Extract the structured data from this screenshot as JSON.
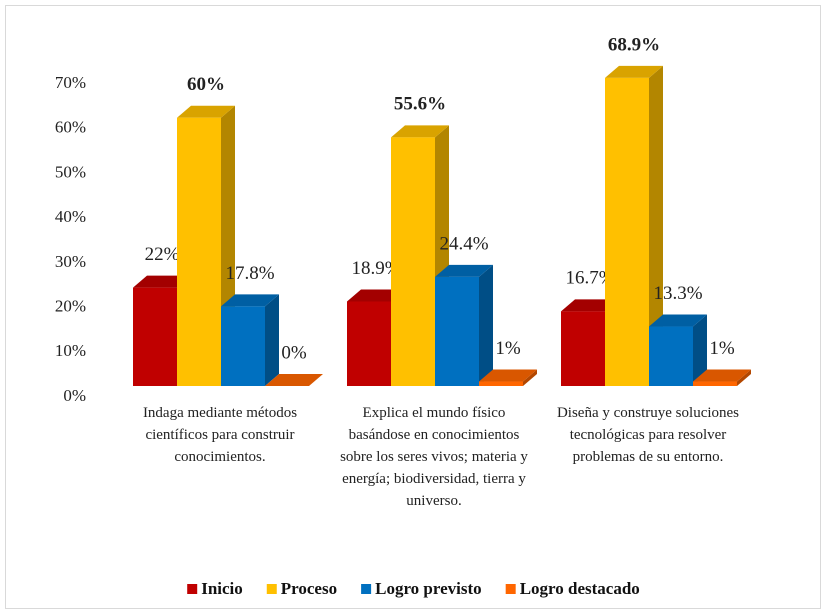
{
  "chart_data": {
    "type": "bar3d",
    "categories": [
      "Indaga mediante métodos científicos para construir conocimientos.",
      "Explica el mundo físico basándose en conocimientos sobre los seres vivos; materia y energía; biodiversidad, tierra y universo.",
      "Diseña y construye soluciones tecnológicas para resolver problemas de su entorno."
    ],
    "series": [
      {
        "name": "Inicio",
        "color": "#c00000",
        "values": [
          22,
          18.9,
          16.7
        ],
        "value_labels": [
          "22%",
          "18.9%",
          "16.7%"
        ],
        "label_bold": false
      },
      {
        "name": "Proceso",
        "color": "#ffc000",
        "values": [
          60,
          55.6,
          68.9
        ],
        "value_labels": [
          "60%",
          "55.6%",
          "68.9%"
        ],
        "label_bold": true
      },
      {
        "name": "Logro previsto",
        "color": "#0070c0",
        "values": [
          17.8,
          24.4,
          13.3
        ],
        "value_labels": [
          "17.8%",
          "24.4%",
          "13.3%"
        ],
        "label_bold": false
      },
      {
        "name": "Logro destacado",
        "color": "#ff6600",
        "values": [
          0,
          1,
          1
        ],
        "value_labels": [
          "0%",
          "1%",
          "1%"
        ],
        "label_bold": false
      }
    ],
    "ylim": [
      0,
      70
    ],
    "yticks": [
      {
        "value": 0,
        "label": "0%"
      },
      {
        "value": 10,
        "label": "10%"
      },
      {
        "value": 20,
        "label": "20%"
      },
      {
        "value": 30,
        "label": "30%"
      },
      {
        "value": 40,
        "label": "40%"
      },
      {
        "value": 50,
        "label": "50%"
      },
      {
        "value": 60,
        "label": "60%"
      },
      {
        "value": 70,
        "label": "70%"
      }
    ],
    "grid": false,
    "legend": "bottom"
  }
}
